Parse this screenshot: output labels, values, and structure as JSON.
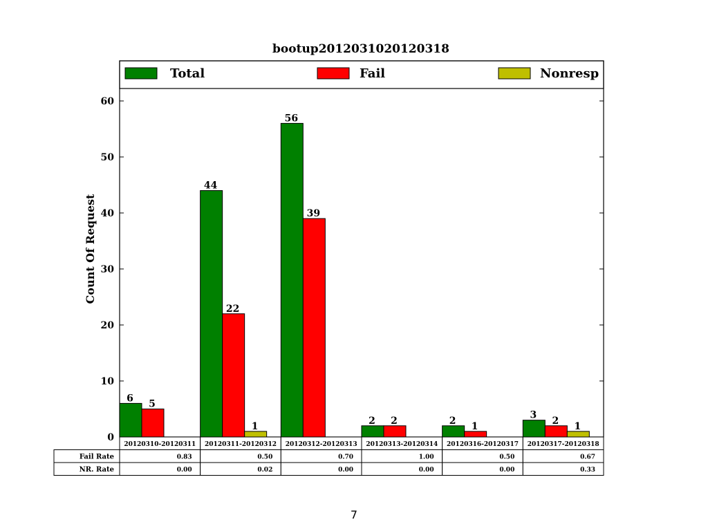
{
  "chart_data": {
    "type": "bar",
    "title": "bootup2012031020120318",
    "xlabel": "",
    "ylabel": "Count Of Request",
    "ylim": [
      0,
      62
    ],
    "yticks": [
      0,
      10,
      20,
      30,
      40,
      50,
      60
    ],
    "legend_position": "top",
    "grid": false,
    "categories": [
      "20120310-20120311",
      "20120311-20120312",
      "20120312-20120313",
      "20120313-20120314",
      "20120316-20120317",
      "20120317-20120318"
    ],
    "series": [
      {
        "name": "Total",
        "color": "#008000",
        "values": [
          6,
          44,
          56,
          2,
          2,
          3
        ]
      },
      {
        "name": "Fail",
        "color": "#ff0000",
        "values": [
          5,
          22,
          39,
          2,
          1,
          2
        ]
      },
      {
        "name": "Nonresp",
        "color": "#bfbf00",
        "values": [
          0,
          1,
          0,
          0,
          0,
          1
        ]
      }
    ],
    "table_rows": [
      {
        "label": "Fail Rate",
        "values": [
          "0.83",
          "0.50",
          "0.70",
          "1.00",
          "0.50",
          "0.67"
        ]
      },
      {
        "label": "NR. Rate",
        "values": [
          "0.00",
          "0.02",
          "0.00",
          "0.00",
          "0.00",
          "0.33"
        ]
      }
    ]
  },
  "page_number": "7"
}
